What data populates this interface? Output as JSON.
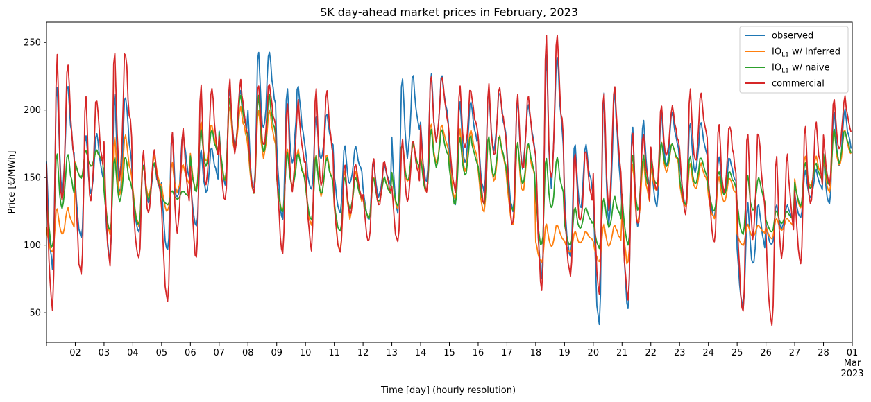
{
  "chart_data": {
    "type": "line",
    "title": "SK day-ahead market prices in February, 2023",
    "xlabel": "Time [day] (hourly resolution)",
    "ylabel": "Price [€/MWh]",
    "ylim": [
      28,
      265
    ],
    "xlim": [
      "2023-02-01",
      "2023-03-01"
    ],
    "yticks": [
      50,
      100,
      150,
      200,
      250
    ],
    "xticks": [
      "02",
      "03",
      "04",
      "05",
      "06",
      "07",
      "08",
      "09",
      "10",
      "11",
      "12",
      "13",
      "14",
      "15",
      "16",
      "17",
      "18",
      "19",
      "20",
      "21",
      "22",
      "23",
      "24",
      "25",
      "26",
      "27",
      "28",
      "01"
    ],
    "xtick_extra": {
      "month": "Mar",
      "year": "2023"
    },
    "legend_position": "top-right",
    "grid": false,
    "x": [
      "02-01",
      "02-02",
      "02-03",
      "02-04",
      "02-05",
      "02-06",
      "02-07",
      "02-08",
      "02-09",
      "02-10",
      "02-11",
      "02-12",
      "02-13",
      "02-14",
      "02-15",
      "02-16",
      "02-17",
      "02-18",
      "02-19",
      "02-20",
      "02-21",
      "02-22",
      "02-23",
      "02-24",
      "02-25",
      "02-26",
      "02-27",
      "02-28"
    ],
    "series": [
      {
        "name": "observed",
        "legend_main": "observed",
        "legend_sub": "",
        "legend_rest": "",
        "color": "#1f77b4",
        "daily_min": [
          85,
          105,
          88,
          110,
          97,
          115,
          145,
          140,
          120,
          140,
          125,
          120,
          125,
          145,
          130,
          140,
          125,
          75,
          90,
          40,
          55,
          130,
          130,
          120,
          55,
          100,
          120,
          130
        ],
        "daily_max": [
          219,
          183,
          211,
          160,
          184,
          172,
          214,
          245,
          218,
          196,
          173,
          160,
          225,
          225,
          207,
          214,
          205,
          242,
          176,
          215,
          190,
          200,
          190,
          165,
          130,
          130,
          155,
          200
        ]
      },
      {
        "name": "IOL1 w/ inferred",
        "legend_main": "IO",
        "legend_sub": "L1",
        "legend_rest": " w/ inferred",
        "color": "#ff7f0e",
        "daily_min": [
          95,
          150,
          108,
          115,
          125,
          140,
          148,
          140,
          125,
          115,
          96,
          120,
          128,
          140,
          135,
          125,
          115,
          88,
          95,
          88,
          86,
          140,
          128,
          120,
          100,
          105,
          128,
          140
        ],
        "daily_max": [
          127,
          170,
          180,
          165,
          160,
          190,
          202,
          200,
          170,
          168,
          155,
          150,
          175,
          190,
          185,
          180,
          175,
          115,
          110,
          115,
          160,
          175,
          160,
          150,
          115,
          120,
          165,
          185
        ]
      },
      {
        "name": "IOL1 w/ naive",
        "legend_main": "IO",
        "legend_sub": "L1",
        "legend_rest": " w/ naive",
        "color": "#2ca02c",
        "daily_min": [
          98,
          150,
          110,
          115,
          130,
          140,
          148,
          140,
          125,
          118,
          110,
          120,
          128,
          140,
          130,
          130,
          125,
          100,
          100,
          98,
          100,
          145,
          130,
          125,
          108,
          110,
          130,
          145
        ],
        "daily_max": [
          167,
          170,
          165,
          160,
          140,
          185,
          210,
          210,
          168,
          165,
          150,
          150,
          175,
          185,
          180,
          180,
          175,
          165,
          128,
          135,
          165,
          175,
          165,
          155,
          150,
          125,
          160,
          185
        ]
      },
      {
        "name": "commercial",
        "legend_main": "commercial",
        "legend_sub": "",
        "legend_rest": "",
        "color": "#d62728",
        "daily_min": [
          54,
          76,
          85,
          90,
          57,
          88,
          133,
          140,
          97,
          97,
          95,
          103,
          102,
          140,
          140,
          130,
          115,
          68,
          78,
          67,
          62,
          140,
          125,
          102,
          50,
          40,
          85,
          145
        ],
        "daily_max": [
          238,
          210,
          244,
          170,
          184,
          219,
          221,
          220,
          206,
          213,
          160,
          163,
          178,
          226,
          216,
          217,
          210,
          253,
          170,
          216,
          185,
          202,
          213,
          190,
          185,
          165,
          190,
          209
        ]
      }
    ]
  }
}
